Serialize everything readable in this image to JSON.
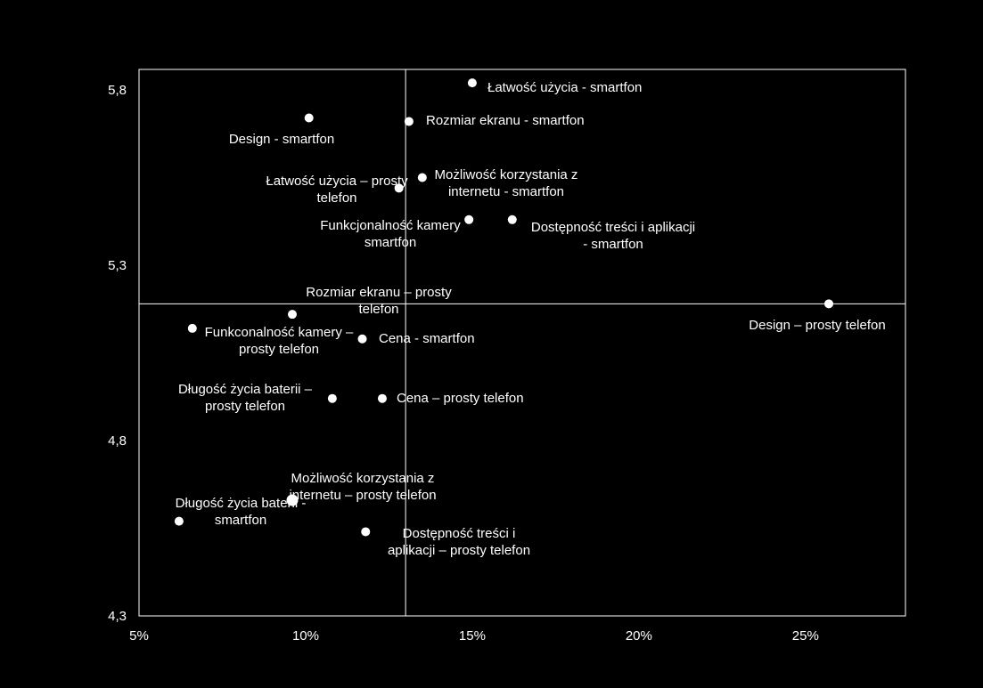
{
  "chart_data": {
    "type": "scatter",
    "title": "",
    "xlabel": "",
    "ylabel": "",
    "xlim": [
      5,
      28
    ],
    "ylim": [
      4.3,
      5.85
    ],
    "x_unit": "%",
    "x_ticks": [
      5,
      10,
      15,
      20,
      25
    ],
    "x_tick_labels": [
      "5%",
      "10%",
      "15%",
      "20%",
      "25%"
    ],
    "y_ticks": [
      4.3,
      4.8,
      5.3,
      5.8
    ],
    "y_tick_labels": [
      "4,3",
      "4,8",
      "5,3",
      "5,8"
    ],
    "reference_lines": {
      "x": 13.0,
      "y": 5.19
    },
    "grid": false,
    "legend": "none",
    "colors": {
      "background": "#000000",
      "foreground": "#ffffff"
    },
    "points": [
      {
        "x": 15.0,
        "y": 5.82,
        "label_lines": [
          "Łatwość  użycia - smartfon"
        ]
      },
      {
        "x": 10.1,
        "y": 5.72,
        "label_lines": [
          "Design - smartfon"
        ]
      },
      {
        "x": 13.1,
        "y": 5.71,
        "label_lines": [
          "Rozmiar  ekranu - smartfon"
        ]
      },
      {
        "x": 13.5,
        "y": 5.55,
        "label_lines": [
          "Możliwość  korzystania z",
          "internetu - smartfon"
        ]
      },
      {
        "x": 12.8,
        "y": 5.52,
        "label_lines": [
          "Łatwość  użycia – prosty",
          "telefon"
        ]
      },
      {
        "x": 14.9,
        "y": 5.43,
        "label_lines": [
          "Funkcjonalność  kamery",
          "smartfon"
        ]
      },
      {
        "x": 16.2,
        "y": 5.43,
        "label_lines": [
          "Dostępność treści i aplikacji",
          "- smartfon"
        ]
      },
      {
        "x": 25.7,
        "y": 5.19,
        "label_lines": [
          "Design – prosty telefon"
        ]
      },
      {
        "x": 9.6,
        "y": 5.16,
        "label_lines": [
          "Rozmiar  ekranu – prosty",
          "telefon"
        ]
      },
      {
        "x": 6.6,
        "y": 5.12,
        "label_lines": [
          "Funkconalność kamery –",
          "prosty telefon"
        ]
      },
      {
        "x": 11.7,
        "y": 5.09,
        "label_lines": [
          "Cena - smartfon"
        ]
      },
      {
        "x": 10.8,
        "y": 4.92,
        "label_lines": [
          "Długość  życia baterii –",
          "prosty telefon"
        ]
      },
      {
        "x": 12.3,
        "y": 4.92,
        "label_lines": [
          "Cena – prosty telefon"
        ]
      },
      {
        "x": 9.6,
        "y": 4.63,
        "label_lines": [
          "Możliwość  korzystania z",
          "internetu – prosty telefon"
        ]
      },
      {
        "x": 6.2,
        "y": 4.57,
        "label_lines": [
          "Długość  życia baterii -",
          "smartfon"
        ]
      },
      {
        "x": 11.8,
        "y": 4.54,
        "label_lines": [
          "Dostępność  treści i",
          "aplikacji – prosty telefon"
        ]
      }
    ]
  }
}
